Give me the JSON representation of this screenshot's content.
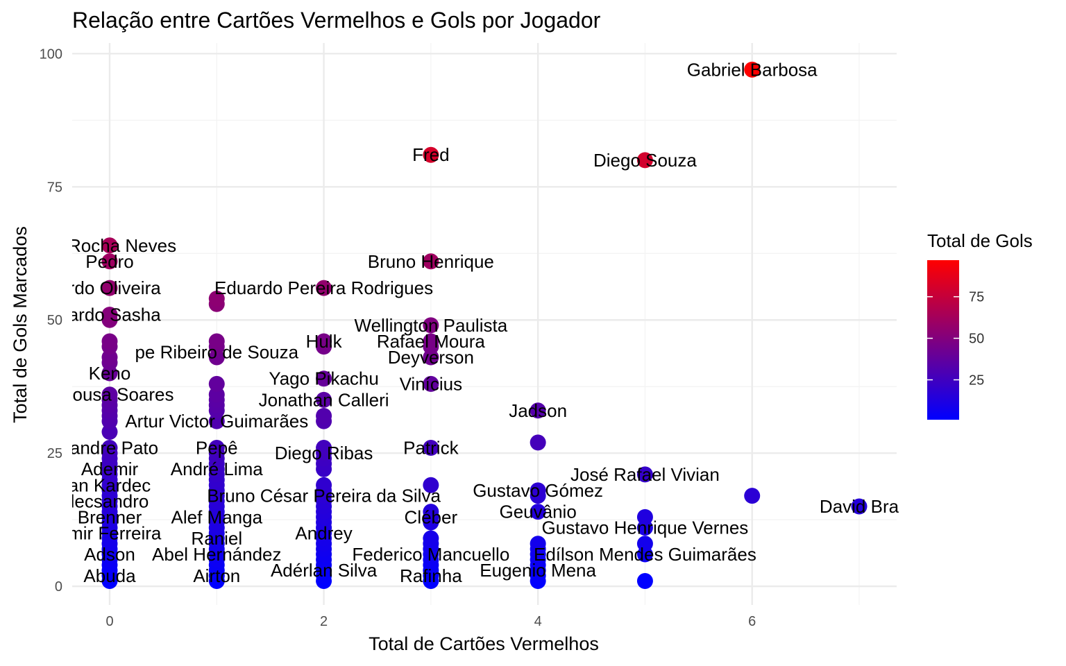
{
  "chart_data": {
    "type": "scatter",
    "title": "Relação entre Cartões Vermelhos e Gols por Jogador",
    "xlabel": "Total de Cartões Vermelhos",
    "ylabel": "Total de Gols Marcados",
    "xlim": [
      -0.35,
      7.35
    ],
    "ylim": [
      -3.5,
      102
    ],
    "xticks": [
      0,
      2,
      4,
      6
    ],
    "yticks": [
      0,
      25,
      50,
      75,
      100
    ],
    "grid": true,
    "color_scale": {
      "low": "#0000ff",
      "high": "#ff0000",
      "min": 1,
      "max": 97
    },
    "legend": {
      "title": "Total de Gols",
      "position": "right",
      "ticks": [
        25,
        50,
        75
      ]
    },
    "points": [
      {
        "x": 6,
        "y": 97
      },
      {
        "x": 3,
        "y": 81
      },
      {
        "x": 5,
        "y": 80
      },
      {
        "x": 0,
        "y": 64
      },
      {
        "x": 0,
        "y": 61
      },
      {
        "x": 3,
        "y": 61
      },
      {
        "x": 0,
        "y": 56
      },
      {
        "x": 2,
        "y": 56
      },
      {
        "x": 1,
        "y": 54
      },
      {
        "x": 1,
        "y": 53
      },
      {
        "x": 0,
        "y": 51
      },
      {
        "x": 0,
        "y": 50
      },
      {
        "x": 3,
        "y": 49
      },
      {
        "x": 0,
        "y": 46
      },
      {
        "x": 0,
        "y": 45
      },
      {
        "x": 1,
        "y": 46
      },
      {
        "x": 1,
        "y": 45
      },
      {
        "x": 2,
        "y": 46
      },
      {
        "x": 2,
        "y": 45
      },
      {
        "x": 3,
        "y": 46
      },
      {
        "x": 3,
        "y": 45
      },
      {
        "x": 0,
        "y": 43
      },
      {
        "x": 1,
        "y": 43
      },
      {
        "x": 3,
        "y": 43
      },
      {
        "x": 0,
        "y": 42
      },
      {
        "x": 0,
        "y": 40
      },
      {
        "x": 2,
        "y": 39
      },
      {
        "x": 1,
        "y": 38
      },
      {
        "x": 3,
        "y": 38
      },
      {
        "x": 0,
        "y": 36
      },
      {
        "x": 1,
        "y": 36
      },
      {
        "x": 0,
        "y": 35
      },
      {
        "x": 1,
        "y": 35
      },
      {
        "x": 2,
        "y": 35
      },
      {
        "x": 0,
        "y": 34
      },
      {
        "x": 1,
        "y": 34
      },
      {
        "x": 0,
        "y": 33
      },
      {
        "x": 1,
        "y": 33
      },
      {
        "x": 4,
        "y": 33
      },
      {
        "x": 0,
        "y": 32
      },
      {
        "x": 2,
        "y": 32
      },
      {
        "x": 0,
        "y": 31
      },
      {
        "x": 1,
        "y": 31
      },
      {
        "x": 2,
        "y": 31
      },
      {
        "x": 0,
        "y": 29
      },
      {
        "x": 4,
        "y": 27
      },
      {
        "x": 0,
        "y": 26
      },
      {
        "x": 1,
        "y": 26
      },
      {
        "x": 2,
        "y": 26
      },
      {
        "x": 3,
        "y": 26
      },
      {
        "x": 0,
        "y": 25
      },
      {
        "x": 1,
        "y": 25
      },
      {
        "x": 2,
        "y": 25
      },
      {
        "x": 0,
        "y": 24
      },
      {
        "x": 1,
        "y": 24
      },
      {
        "x": 2,
        "y": 24
      },
      {
        "x": 0,
        "y": 23
      },
      {
        "x": 1,
        "y": 23
      },
      {
        "x": 2,
        "y": 23
      },
      {
        "x": 0,
        "y": 22
      },
      {
        "x": 1,
        "y": 22
      },
      {
        "x": 2,
        "y": 22
      },
      {
        "x": 0,
        "y": 21
      },
      {
        "x": 1,
        "y": 21
      },
      {
        "x": 5,
        "y": 21
      },
      {
        "x": 0,
        "y": 20
      },
      {
        "x": 1,
        "y": 20
      },
      {
        "x": 0,
        "y": 19
      },
      {
        "x": 1,
        "y": 19
      },
      {
        "x": 2,
        "y": 19
      },
      {
        "x": 3,
        "y": 19
      },
      {
        "x": 0,
        "y": 18
      },
      {
        "x": 1,
        "y": 18
      },
      {
        "x": 2,
        "y": 18
      },
      {
        "x": 4,
        "y": 18
      },
      {
        "x": 0,
        "y": 17
      },
      {
        "x": 1,
        "y": 17
      },
      {
        "x": 2,
        "y": 17
      },
      {
        "x": 4,
        "y": 17
      },
      {
        "x": 6,
        "y": 17
      },
      {
        "x": 0,
        "y": 16
      },
      {
        "x": 1,
        "y": 16
      },
      {
        "x": 2,
        "y": 16
      },
      {
        "x": 0,
        "y": 15
      },
      {
        "x": 1,
        "y": 15
      },
      {
        "x": 2,
        "y": 15
      },
      {
        "x": 7,
        "y": 15
      },
      {
        "x": 0,
        "y": 14
      },
      {
        "x": 1,
        "y": 14
      },
      {
        "x": 2,
        "y": 14
      },
      {
        "x": 3,
        "y": 14
      },
      {
        "x": 4,
        "y": 14
      },
      {
        "x": 0,
        "y": 13
      },
      {
        "x": 1,
        "y": 13
      },
      {
        "x": 2,
        "y": 13
      },
      {
        "x": 3,
        "y": 13
      },
      {
        "x": 5,
        "y": 13
      },
      {
        "x": 0,
        "y": 12
      },
      {
        "x": 1,
        "y": 12
      },
      {
        "x": 2,
        "y": 12
      },
      {
        "x": 3,
        "y": 12
      },
      {
        "x": 0,
        "y": 11
      },
      {
        "x": 1,
        "y": 11
      },
      {
        "x": 2,
        "y": 11
      },
      {
        "x": 5,
        "y": 11
      },
      {
        "x": 0,
        "y": 10
      },
      {
        "x": 1,
        "y": 10
      },
      {
        "x": 2,
        "y": 10
      },
      {
        "x": 0,
        "y": 9
      },
      {
        "x": 1,
        "y": 9
      },
      {
        "x": 2,
        "y": 9
      },
      {
        "x": 3,
        "y": 9
      },
      {
        "x": 0,
        "y": 8
      },
      {
        "x": 1,
        "y": 8
      },
      {
        "x": 2,
        "y": 8
      },
      {
        "x": 3,
        "y": 8
      },
      {
        "x": 4,
        "y": 8
      },
      {
        "x": 5,
        "y": 8
      },
      {
        "x": 0,
        "y": 7
      },
      {
        "x": 1,
        "y": 7
      },
      {
        "x": 2,
        "y": 7
      },
      {
        "x": 3,
        "y": 7
      },
      {
        "x": 4,
        "y": 7
      },
      {
        "x": 0,
        "y": 6
      },
      {
        "x": 1,
        "y": 6
      },
      {
        "x": 2,
        "y": 6
      },
      {
        "x": 3,
        "y": 6
      },
      {
        "x": 4,
        "y": 6
      },
      {
        "x": 5,
        "y": 6
      },
      {
        "x": 0,
        "y": 5
      },
      {
        "x": 1,
        "y": 5
      },
      {
        "x": 2,
        "y": 5
      },
      {
        "x": 3,
        "y": 5
      },
      {
        "x": 4,
        "y": 5
      },
      {
        "x": 0,
        "y": 4
      },
      {
        "x": 1,
        "y": 4
      },
      {
        "x": 2,
        "y": 4
      },
      {
        "x": 3,
        "y": 4
      },
      {
        "x": 4,
        "y": 4
      },
      {
        "x": 0,
        "y": 3
      },
      {
        "x": 1,
        "y": 3
      },
      {
        "x": 2,
        "y": 3
      },
      {
        "x": 3,
        "y": 3
      },
      {
        "x": 4,
        "y": 3
      },
      {
        "x": 0,
        "y": 2
      },
      {
        "x": 1,
        "y": 2
      },
      {
        "x": 2,
        "y": 2
      },
      {
        "x": 3,
        "y": 2
      },
      {
        "x": 4,
        "y": 2
      },
      {
        "x": 0,
        "y": 1
      },
      {
        "x": 1,
        "y": 1
      },
      {
        "x": 2,
        "y": 1
      },
      {
        "x": 3,
        "y": 1
      },
      {
        "x": 4,
        "y": 1
      },
      {
        "x": 5,
        "y": 1
      }
    ],
    "labels": [
      {
        "text": "Gabriel Barbosa",
        "x": 6,
        "y": 97
      },
      {
        "text": "Fred",
        "x": 3,
        "y": 81
      },
      {
        "text": "Diego Souza",
        "x": 5,
        "y": 80
      },
      {
        "text": "da Rocha Neves",
        "x": 0,
        "y": 64
      },
      {
        "text": "Pedro",
        "x": 0,
        "y": 61
      },
      {
        "text": "Bruno Henrique",
        "x": 3,
        "y": 61
      },
      {
        "text": "ardo Oliveira",
        "x": 0,
        "y": 56
      },
      {
        "text": "Eduardo Pereira Rodrigues",
        "x": 2,
        "y": 56
      },
      {
        "text": "uardo Sasha",
        "x": 0,
        "y": 51
      },
      {
        "text": "Wellington Paulista",
        "x": 3,
        "y": 49
      },
      {
        "text": "Hulk",
        "x": 2,
        "y": 46
      },
      {
        "text": "Rafael Moura",
        "x": 3,
        "y": 46
      },
      {
        "text": "pe Ribeiro de Souza",
        "x": 1,
        "y": 44
      },
      {
        "text": "Deyverson",
        "x": 3,
        "y": 43
      },
      {
        "text": "Keno",
        "x": 0,
        "y": 40
      },
      {
        "text": "Yago Pikachu",
        "x": 2,
        "y": 39
      },
      {
        "text": "Vinícius",
        "x": 3,
        "y": 38
      },
      {
        "text": "n Sousa Soares",
        "x": 0,
        "y": 36
      },
      {
        "text": "Jonathan Calleri",
        "x": 2,
        "y": 35
      },
      {
        "text": "Jadson",
        "x": 4,
        "y": 33
      },
      {
        "text": "Artur Victor Guimarães",
        "x": 1,
        "y": 31
      },
      {
        "text": "xandre Pato",
        "x": 0,
        "y": 26
      },
      {
        "text": "Pepê",
        "x": 1,
        "y": 26
      },
      {
        "text": "Patrick",
        "x": 3,
        "y": 26
      },
      {
        "text": "Diego Ribas",
        "x": 2,
        "y": 25
      },
      {
        "text": "Ademir",
        "x": 0,
        "y": 22
      },
      {
        "text": "André Lima",
        "x": 1,
        "y": 22
      },
      {
        "text": "José Rafael Vivian",
        "x": 5,
        "y": 21
      },
      {
        "text": "an Kardec",
        "x": 0,
        "y": 19
      },
      {
        "text": "Gustavo Gómez",
        "x": 4,
        "y": 18
      },
      {
        "text": "lecsandro",
        "x": 0,
        "y": 16
      },
      {
        "text": "Bruno César Pereira da Silva",
        "x": 2,
        "y": 17
      },
      {
        "text": "David Bra",
        "x": 7,
        "y": 15
      },
      {
        "text": "Geuvânio",
        "x": 4,
        "y": 14
      },
      {
        "text": "Brenner",
        "x": 0,
        "y": 13
      },
      {
        "text": "Alef Manga",
        "x": 1,
        "y": 13
      },
      {
        "text": "Cléber",
        "x": 3,
        "y": 13
      },
      {
        "text": "Gustavo Henrique Vernes",
        "x": 5,
        "y": 11
      },
      {
        "text": "emir Ferreira",
        "x": 0,
        "y": 10
      },
      {
        "text": "Raniel",
        "x": 1,
        "y": 9
      },
      {
        "text": "Andrey",
        "x": 2,
        "y": 10
      },
      {
        "text": "Adson",
        "x": 0,
        "y": 6
      },
      {
        "text": "Abel Hernández",
        "x": 1,
        "y": 6
      },
      {
        "text": "Federico Mancuello",
        "x": 3,
        "y": 6
      },
      {
        "text": "Edílson Mendes Guimarães",
        "x": 5,
        "y": 6
      },
      {
        "text": "Adérlan Silva",
        "x": 2,
        "y": 3
      },
      {
        "text": "Eugenio Mena",
        "x": 4,
        "y": 3
      },
      {
        "text": "Abuda",
        "x": 0,
        "y": 2
      },
      {
        "text": "Airton",
        "x": 1,
        "y": 2
      },
      {
        "text": "Rafinha",
        "x": 3,
        "y": 2
      }
    ]
  }
}
